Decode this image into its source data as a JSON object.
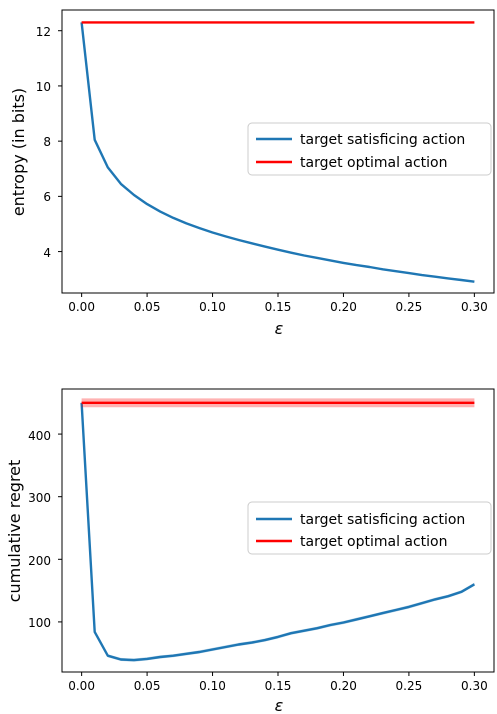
{
  "chart_data": [
    {
      "type": "line",
      "title": "",
      "xlabel": "ε",
      "ylabel": "entropy (in bits)",
      "xlim": [
        -0.015,
        0.315
      ],
      "ylim": [
        2.5,
        12.75
      ],
      "xticks": [
        0.0,
        0.05,
        0.1,
        0.15,
        0.2,
        0.25,
        0.3
      ],
      "xtick_labels": [
        "0.00",
        "0.05",
        "0.10",
        "0.15",
        "0.20",
        "0.25",
        "0.30"
      ],
      "yticks": [
        4,
        6,
        8,
        10,
        12
      ],
      "ytick_labels": [
        "4",
        "6",
        "8",
        "10",
        "12"
      ],
      "legend_position": "center-right",
      "grid": false,
      "series": [
        {
          "name": "target satisficing action",
          "color": "#1f77b4",
          "x": [
            0.0,
            0.01,
            0.02,
            0.03,
            0.04,
            0.05,
            0.06,
            0.07,
            0.08,
            0.09,
            0.1,
            0.11,
            0.12,
            0.13,
            0.14,
            0.15,
            0.16,
            0.17,
            0.18,
            0.19,
            0.2,
            0.21,
            0.22,
            0.23,
            0.24,
            0.25,
            0.26,
            0.27,
            0.28,
            0.29,
            0.3
          ],
          "y": [
            12.3,
            8.05,
            7.05,
            6.45,
            6.05,
            5.72,
            5.45,
            5.22,
            5.02,
            4.85,
            4.69,
            4.55,
            4.42,
            4.3,
            4.18,
            4.07,
            3.96,
            3.86,
            3.77,
            3.68,
            3.59,
            3.51,
            3.44,
            3.36,
            3.29,
            3.22,
            3.15,
            3.09,
            3.03,
            2.97,
            2.91
          ]
        },
        {
          "name": "target optimal action",
          "color": "#ff0000",
          "x": [
            0.0,
            0.3
          ],
          "y": [
            12.3,
            12.3
          ]
        }
      ]
    },
    {
      "type": "line",
      "title": "",
      "xlabel": "ε",
      "ylabel": "cumulative regret",
      "xlim": [
        -0.015,
        0.315
      ],
      "ylim": [
        20,
        472
      ],
      "xticks": [
        0.0,
        0.05,
        0.1,
        0.15,
        0.2,
        0.25,
        0.3
      ],
      "xtick_labels": [
        "0.00",
        "0.05",
        "0.10",
        "0.15",
        "0.20",
        "0.25",
        "0.30"
      ],
      "yticks": [
        100,
        200,
        300,
        400
      ],
      "ytick_labels": [
        "100",
        "200",
        "300",
        "400"
      ],
      "legend_position": "center-right",
      "grid": false,
      "series": [
        {
          "name": "target satisficing action",
          "color": "#1f77b4",
          "band": 2.5,
          "x": [
            0.0,
            0.01,
            0.02,
            0.03,
            0.04,
            0.05,
            0.06,
            0.07,
            0.08,
            0.09,
            0.1,
            0.11,
            0.12,
            0.13,
            0.14,
            0.15,
            0.16,
            0.17,
            0.18,
            0.19,
            0.2,
            0.21,
            0.22,
            0.23,
            0.24,
            0.25,
            0.26,
            0.27,
            0.28,
            0.29,
            0.3
          ],
          "y": [
            450,
            84,
            46,
            40,
            39,
            41,
            44,
            46,
            49,
            52,
            56,
            60,
            64,
            67,
            71,
            76,
            82,
            86,
            90,
            95,
            99,
            104,
            109,
            114,
            119,
            124,
            130,
            136,
            141,
            148,
            160
          ]
        },
        {
          "name": "target optimal action",
          "color": "#ff0000",
          "band": 7,
          "x": [
            0.0,
            0.3
          ],
          "y": [
            450,
            450
          ]
        }
      ]
    }
  ]
}
